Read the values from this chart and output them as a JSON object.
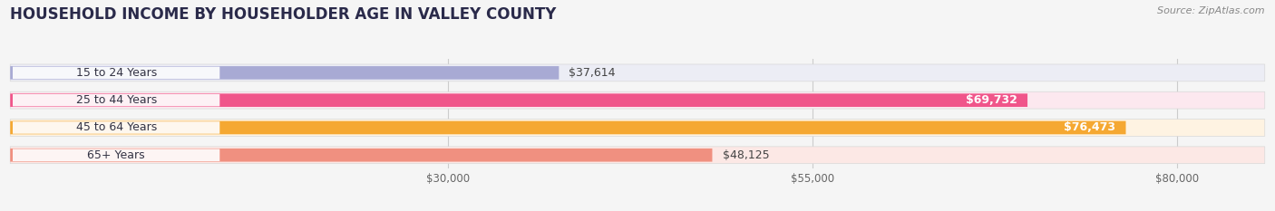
{
  "title": "HOUSEHOLD INCOME BY HOUSEHOLDER AGE IN VALLEY COUNTY",
  "source": "Source: ZipAtlas.com",
  "categories": [
    "15 to 24 Years",
    "25 to 44 Years",
    "45 to 64 Years",
    "65+ Years"
  ],
  "values": [
    37614,
    69732,
    76473,
    48125
  ],
  "bar_colors": [
    "#a8aad4",
    "#f0558a",
    "#f5a832",
    "#f09080"
  ],
  "bar_bg_colors": [
    "#ecedf5",
    "#fce8ef",
    "#fef3e2",
    "#fce8e5"
  ],
  "value_labels": [
    "$37,614",
    "$69,732",
    "$76,473",
    "$48,125"
  ],
  "label_in_bar": [
    false,
    true,
    true,
    false
  ],
  "xmin": 0,
  "xmax": 86000,
  "xticks": [
    30000,
    55000,
    80000
  ],
  "xtick_labels": [
    "$30,000",
    "$55,000",
    "$80,000"
  ],
  "background_color": "#f5f5f5",
  "bar_height": 0.62,
  "title_fontsize": 12,
  "source_fontsize": 8,
  "label_fontsize": 9,
  "category_fontsize": 9,
  "tick_fontsize": 8.5,
  "title_color": "#2a2a4a",
  "tick_color": "#666666"
}
